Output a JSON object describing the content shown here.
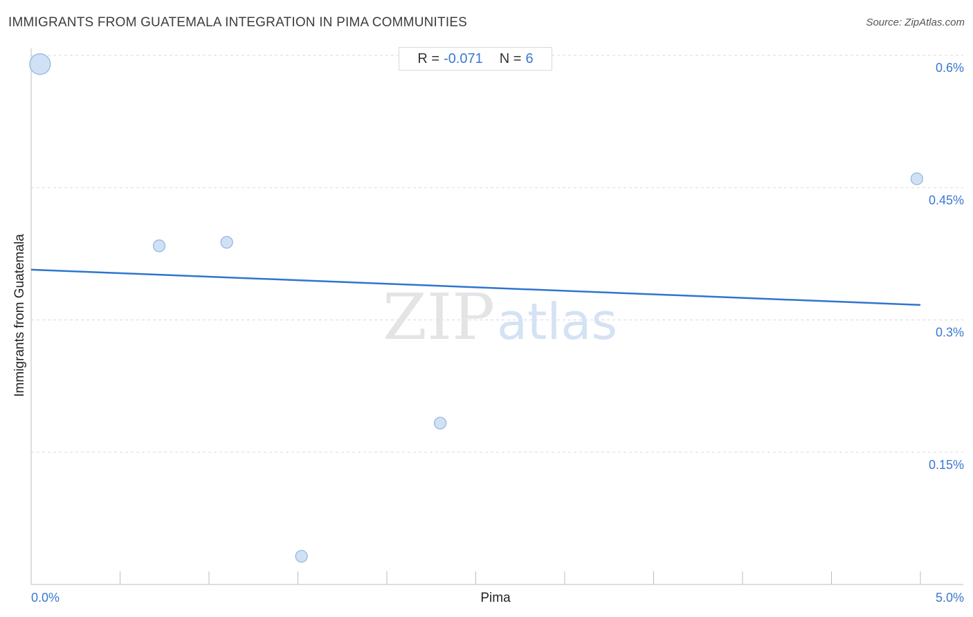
{
  "header": {
    "title": "IMMIGRANTS FROM GUATEMALA INTEGRATION IN PIMA COMMUNITIES",
    "source": "Source: ZipAtlas.com"
  },
  "stats": {
    "r_label": "R =",
    "r_value": "-0.071",
    "n_label": "N =",
    "n_value": "6"
  },
  "watermark": {
    "zip": "ZIP",
    "atlas": "atlas"
  },
  "colors": {
    "accent": "#3a78d0",
    "point_fill": "#c9dcf3",
    "point_stroke": "#8fb3e0",
    "trend": "#2f74d0",
    "grid": "#d8d8d8"
  },
  "chart_data": {
    "type": "scatter",
    "title": "IMMIGRANTS FROM GUATEMALA INTEGRATION IN PIMA COMMUNITIES",
    "xlabel": "Pima",
    "ylabel": "Immigrants from Guatemala",
    "xlim": [
      0,
      5.0
    ],
    "ylim": [
      0,
      0.6
    ],
    "x_tick_labels": [
      {
        "value": 0,
        "label": "0.0%"
      },
      {
        "value": 5.0,
        "label": "5.0%"
      }
    ],
    "y_tick_labels": [
      {
        "value": 0.6,
        "label": "0.6%"
      },
      {
        "value": 0.45,
        "label": "0.45%"
      },
      {
        "value": 0.3,
        "label": "0.3%"
      },
      {
        "value": 0.15,
        "label": "0.15%"
      }
    ],
    "grid": "horizontal dashed",
    "points": [
      {
        "x": 0.05,
        "y": 0.59,
        "size": "large"
      },
      {
        "x": 0.72,
        "y": 0.384,
        "size": "small"
      },
      {
        "x": 1.1,
        "y": 0.388,
        "size": "small"
      },
      {
        "x": 1.52,
        "y": 0.032,
        "size": "small"
      },
      {
        "x": 2.3,
        "y": 0.183,
        "size": "small"
      },
      {
        "x": 4.98,
        "y": 0.46,
        "size": "small"
      }
    ],
    "trend_line": {
      "x": [
        0,
        5.0
      ],
      "y": [
        0.357,
        0.317
      ]
    },
    "r": -0.071,
    "n": 6
  }
}
